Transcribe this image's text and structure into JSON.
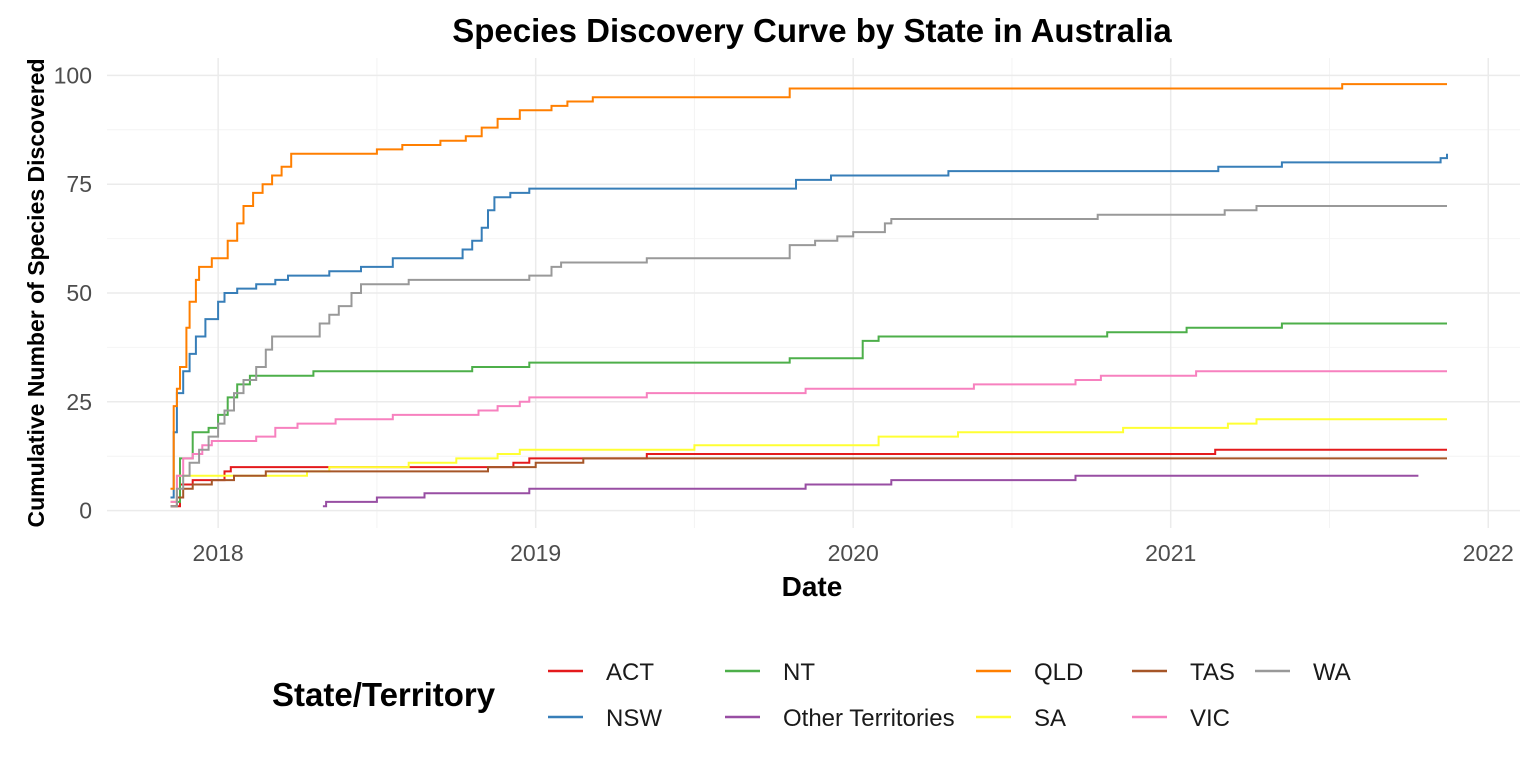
{
  "chart_data": {
    "type": "line",
    "title": "Species Discovery Curve by State in Australia",
    "xlabel": "Date",
    "ylabel": "Cumulative Number of Species Discovered",
    "x_ticks": [
      2018,
      2019,
      2020,
      2021,
      2022
    ],
    "y_ticks": [
      0,
      25,
      50,
      75,
      100
    ],
    "xlim": [
      2017.65,
      2022.1
    ],
    "ylim": [
      -4,
      104
    ],
    "grid": true,
    "legend": {
      "title": "State/Territory",
      "position": "bottom"
    },
    "series": [
      {
        "name": "ACT",
        "color": "#E41A1C",
        "points": [
          [
            2017.85,
            1
          ],
          [
            2017.88,
            6
          ],
          [
            2017.92,
            7
          ],
          [
            2018.02,
            9
          ],
          [
            2018.04,
            10
          ],
          [
            2018.5,
            10
          ],
          [
            2018.93,
            11
          ],
          [
            2018.98,
            12
          ],
          [
            2019.35,
            13
          ],
          [
            2020.5,
            13
          ],
          [
            2021.14,
            14
          ],
          [
            2021.87,
            14
          ]
        ]
      },
      {
        "name": "NSW",
        "color": "#377EB8",
        "points": [
          [
            2017.85,
            3
          ],
          [
            2017.86,
            18
          ],
          [
            2017.87,
            27
          ],
          [
            2017.89,
            32
          ],
          [
            2017.91,
            36
          ],
          [
            2017.93,
            40
          ],
          [
            2017.96,
            44
          ],
          [
            2018.0,
            48
          ],
          [
            2018.02,
            50
          ],
          [
            2018.06,
            51
          ],
          [
            2018.12,
            52
          ],
          [
            2018.18,
            53
          ],
          [
            2018.22,
            54
          ],
          [
            2018.35,
            55
          ],
          [
            2018.45,
            56
          ],
          [
            2018.55,
            58
          ],
          [
            2018.7,
            58
          ],
          [
            2018.77,
            60
          ],
          [
            2018.8,
            62
          ],
          [
            2018.83,
            65
          ],
          [
            2018.85,
            69
          ],
          [
            2018.87,
            72
          ],
          [
            2018.92,
            73
          ],
          [
            2018.98,
            74
          ],
          [
            2019.3,
            74
          ],
          [
            2019.78,
            74
          ],
          [
            2019.82,
            76
          ],
          [
            2019.93,
            77
          ],
          [
            2020.3,
            78
          ],
          [
            2021.15,
            79
          ],
          [
            2021.35,
            80
          ],
          [
            2021.85,
            81
          ],
          [
            2021.87,
            82
          ]
        ]
      },
      {
        "name": "NT",
        "color": "#4DAF4A",
        "points": [
          [
            2017.85,
            2
          ],
          [
            2017.88,
            12
          ],
          [
            2017.92,
            18
          ],
          [
            2017.97,
            19
          ],
          [
            2018.0,
            22
          ],
          [
            2018.03,
            26
          ],
          [
            2018.06,
            29
          ],
          [
            2018.1,
            31
          ],
          [
            2018.25,
            31
          ],
          [
            2018.3,
            32
          ],
          [
            2018.8,
            33
          ],
          [
            2018.98,
            34
          ],
          [
            2019.8,
            35
          ],
          [
            2020.03,
            39
          ],
          [
            2020.08,
            40
          ],
          [
            2020.35,
            40
          ],
          [
            2020.77,
            40
          ],
          [
            2020.8,
            41
          ],
          [
            2021.05,
            42
          ],
          [
            2021.35,
            43
          ],
          [
            2021.87,
            43
          ]
        ]
      },
      {
        "name": "Other Territories",
        "color": "#984EA3",
        "points": [
          [
            2018.33,
            1
          ],
          [
            2018.34,
            2
          ],
          [
            2018.5,
            3
          ],
          [
            2018.65,
            4
          ],
          [
            2018.98,
            5
          ],
          [
            2019.6,
            5
          ],
          [
            2019.85,
            6
          ],
          [
            2020.12,
            7
          ],
          [
            2020.65,
            7
          ],
          [
            2020.7,
            8
          ],
          [
            2021.78,
            8
          ]
        ]
      },
      {
        "name": "QLD",
        "color": "#FF7F00",
        "points": [
          [
            2017.85,
            5
          ],
          [
            2017.86,
            24
          ],
          [
            2017.87,
            28
          ],
          [
            2017.88,
            33
          ],
          [
            2017.9,
            42
          ],
          [
            2017.91,
            48
          ],
          [
            2017.93,
            53
          ],
          [
            2017.94,
            56
          ],
          [
            2017.98,
            58
          ],
          [
            2018.03,
            62
          ],
          [
            2018.06,
            66
          ],
          [
            2018.08,
            70
          ],
          [
            2018.11,
            73
          ],
          [
            2018.14,
            75
          ],
          [
            2018.17,
            77
          ],
          [
            2018.2,
            79
          ],
          [
            2018.23,
            82
          ],
          [
            2018.45,
            82
          ],
          [
            2018.5,
            83
          ],
          [
            2018.58,
            84
          ],
          [
            2018.7,
            85
          ],
          [
            2018.78,
            86
          ],
          [
            2018.83,
            88
          ],
          [
            2018.88,
            90
          ],
          [
            2018.95,
            92
          ],
          [
            2019.05,
            93
          ],
          [
            2019.1,
            94
          ],
          [
            2019.18,
            95
          ],
          [
            2019.78,
            95
          ],
          [
            2019.8,
            97
          ],
          [
            2021.5,
            97
          ],
          [
            2021.54,
            98
          ],
          [
            2021.87,
            98
          ]
        ]
      },
      {
        "name": "SA",
        "color": "#FFFF33",
        "points": [
          [
            2017.85,
            2
          ],
          [
            2017.87,
            8
          ],
          [
            2018.1,
            8
          ],
          [
            2018.28,
            9
          ],
          [
            2018.35,
            10
          ],
          [
            2018.6,
            11
          ],
          [
            2018.75,
            12
          ],
          [
            2018.88,
            13
          ],
          [
            2018.95,
            14
          ],
          [
            2019.5,
            15
          ],
          [
            2020.08,
            17
          ],
          [
            2020.33,
            18
          ],
          [
            2020.85,
            19
          ],
          [
            2021.18,
            20
          ],
          [
            2021.27,
            21
          ],
          [
            2021.87,
            21
          ]
        ]
      },
      {
        "name": "TAS",
        "color": "#A65628",
        "points": [
          [
            2017.85,
            1
          ],
          [
            2017.87,
            3
          ],
          [
            2017.89,
            5
          ],
          [
            2017.92,
            6
          ],
          [
            2017.98,
            7
          ],
          [
            2018.05,
            8
          ],
          [
            2018.15,
            9
          ],
          [
            2018.5,
            9
          ],
          [
            2018.85,
            10
          ],
          [
            2019.0,
            11
          ],
          [
            2019.15,
            12
          ],
          [
            2021.87,
            12
          ]
        ]
      },
      {
        "name": "VIC",
        "color": "#F781BF",
        "points": [
          [
            2017.85,
            2
          ],
          [
            2017.87,
            8
          ],
          [
            2017.89,
            12
          ],
          [
            2017.92,
            13
          ],
          [
            2017.95,
            15
          ],
          [
            2017.98,
            16
          ],
          [
            2018.12,
            17
          ],
          [
            2018.18,
            19
          ],
          [
            2018.25,
            20
          ],
          [
            2018.37,
            21
          ],
          [
            2018.55,
            22
          ],
          [
            2018.82,
            23
          ],
          [
            2018.88,
            24
          ],
          [
            2018.95,
            25
          ],
          [
            2018.98,
            26
          ],
          [
            2019.35,
            27
          ],
          [
            2019.7,
            27
          ],
          [
            2019.85,
            28
          ],
          [
            2020.38,
            29
          ],
          [
            2020.7,
            30
          ],
          [
            2020.78,
            31
          ],
          [
            2021.08,
            32
          ],
          [
            2021.87,
            32
          ]
        ]
      },
      {
        "name": "WA",
        "color": "#999999",
        "points": [
          [
            2017.85,
            1
          ],
          [
            2017.87,
            5
          ],
          [
            2017.89,
            8
          ],
          [
            2017.91,
            11
          ],
          [
            2017.94,
            14
          ],
          [
            2017.97,
            17
          ],
          [
            2018.0,
            20
          ],
          [
            2018.02,
            23
          ],
          [
            2018.05,
            27
          ],
          [
            2018.08,
            30
          ],
          [
            2018.12,
            33
          ],
          [
            2018.15,
            37
          ],
          [
            2018.17,
            40
          ],
          [
            2018.3,
            40
          ],
          [
            2018.32,
            43
          ],
          [
            2018.35,
            45
          ],
          [
            2018.38,
            47
          ],
          [
            2018.42,
            50
          ],
          [
            2018.45,
            52
          ],
          [
            2018.6,
            53
          ],
          [
            2018.98,
            54
          ],
          [
            2019.05,
            56
          ],
          [
            2019.08,
            57
          ],
          [
            2019.35,
            58
          ],
          [
            2019.78,
            58
          ],
          [
            2019.8,
            61
          ],
          [
            2019.88,
            62
          ],
          [
            2019.95,
            63
          ],
          [
            2020.0,
            64
          ],
          [
            2020.1,
            66
          ],
          [
            2020.12,
            67
          ],
          [
            2020.77,
            68
          ],
          [
            2021.17,
            69
          ],
          [
            2021.27,
            70
          ],
          [
            2021.87,
            70
          ]
        ]
      }
    ]
  }
}
